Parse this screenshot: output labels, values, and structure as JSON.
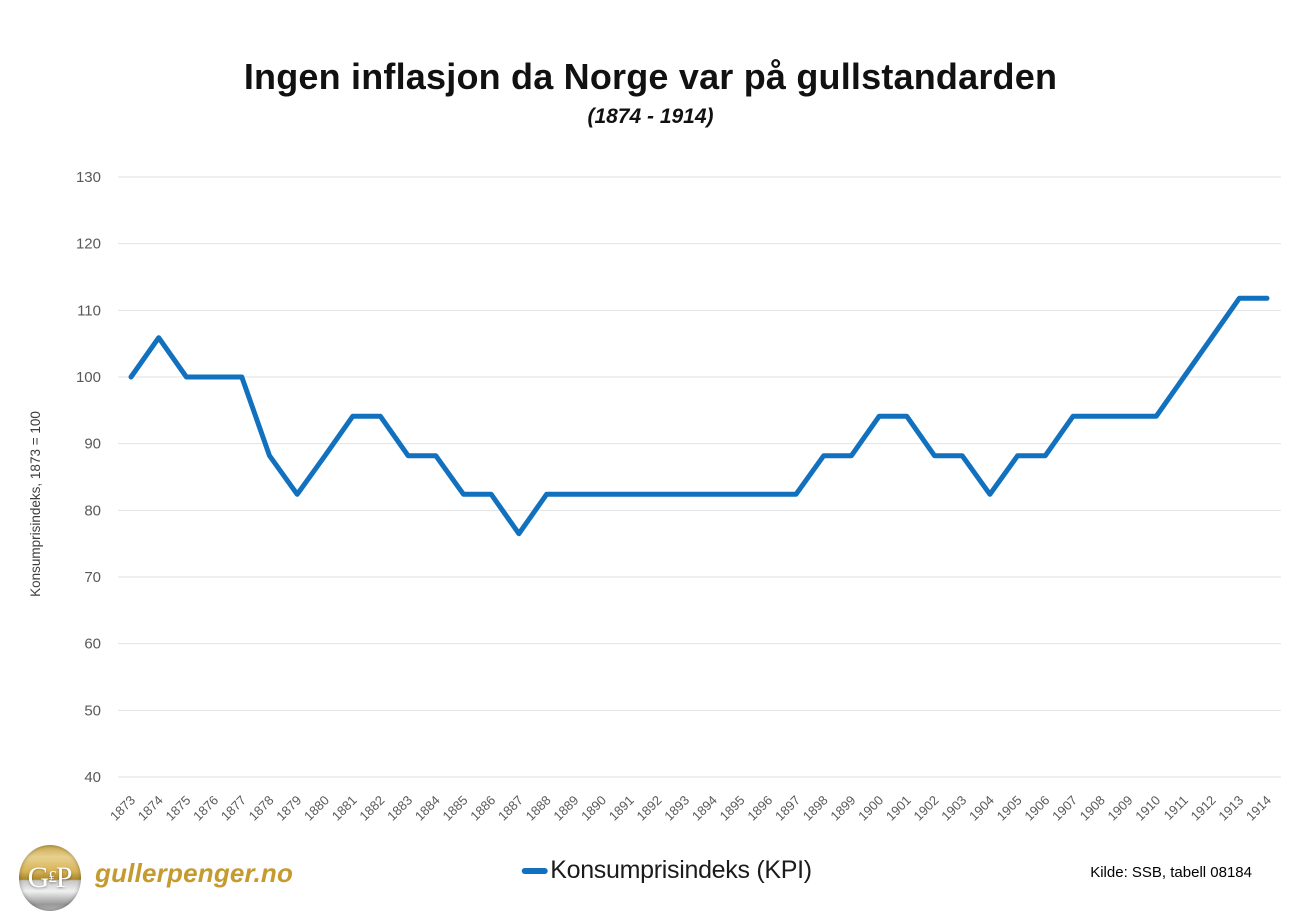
{
  "header": {
    "title": "Ingen inflasjon da Norge var på gullstandarden",
    "subtitle": "(1874 - 1914)"
  },
  "footer": {
    "logo_letters": {
      "left": "G",
      "mid": "₤",
      "right": "P"
    },
    "brand": "gullerpenger.no",
    "source": "Kilde: SSB, tabell 08184"
  },
  "colors": {
    "line": "#1271be",
    "grid": "#e2e2e2",
    "tick_text": "#595959",
    "brand_gold": "#c59a2f"
  },
  "chart_data": {
    "type": "line",
    "title": "Ingen inflasjon da Norge var på gullstandarden",
    "subtitle": "(1874 - 1914)",
    "xlabel": "",
    "ylabel": "Konsumprisindeks, 1873 = 100",
    "ylim": [
      40,
      130
    ],
    "ytick_step": 10,
    "grid": true,
    "legend_position": "bottom",
    "categories": [
      "1873",
      "1874",
      "1875",
      "1876",
      "1877",
      "1878",
      "1879",
      "1880",
      "1881",
      "1882",
      "1883",
      "1884",
      "1885",
      "1886",
      "1887",
      "1888",
      "1889",
      "1890",
      "1891",
      "1892",
      "1893",
      "1894",
      "1895",
      "1896",
      "1897",
      "1898",
      "1899",
      "1900",
      "1901",
      "1902",
      "1903",
      "1904",
      "1905",
      "1906",
      "1907",
      "1908",
      "1909",
      "1910",
      "1911",
      "1912",
      "1913",
      "1914"
    ],
    "series": [
      {
        "name": "Konsumprisindeks (KPI)",
        "values": [
          100,
          105.9,
          100,
          100,
          100,
          88.2,
          82.4,
          88.2,
          94.1,
          94.1,
          88.2,
          88.2,
          82.4,
          82.4,
          76.5,
          82.4,
          82.4,
          82.4,
          82.4,
          82.4,
          82.4,
          82.4,
          82.4,
          82.4,
          82.4,
          88.2,
          88.2,
          94.1,
          94.1,
          88.2,
          88.2,
          82.4,
          88.2,
          88.2,
          94.1,
          94.1,
          94.1,
          94.1,
          100,
          105.9,
          111.8,
          111.8
        ]
      }
    ]
  }
}
